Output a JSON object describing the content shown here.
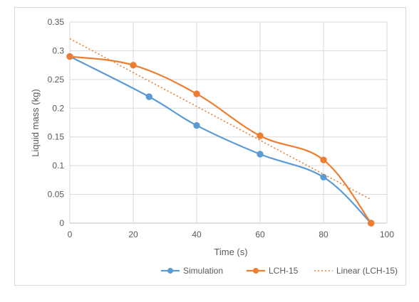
{
  "chart_data": {
    "type": "line",
    "title": "",
    "xlabel": "Time (s)",
    "ylabel": "Liquid mass (kg)",
    "xlim": [
      0,
      100
    ],
    "ylim": [
      0,
      0.35
    ],
    "x_ticks": [
      "0",
      "20",
      "40",
      "60",
      "80",
      "100"
    ],
    "y_ticks": [
      "0",
      "0.05",
      "0.1",
      "0.15",
      "0.2",
      "0.25",
      "0.3",
      "0.35"
    ],
    "grid": true,
    "legend_position": "bottom-right",
    "series": [
      {
        "name": "Simulation",
        "color": "#5b9bd5",
        "style": "smooth-line-markers",
        "points": [
          [
            0,
            0.29
          ],
          [
            25,
            0.22
          ],
          [
            40,
            0.17
          ],
          [
            60,
            0.12
          ],
          [
            80,
            0.08
          ],
          [
            95,
            0.0
          ]
        ]
      },
      {
        "name": "LCH-15",
        "color": "#ed7d31",
        "style": "smooth-line-markers",
        "points": [
          [
            0,
            0.29
          ],
          [
            20,
            0.275
          ],
          [
            40,
            0.225
          ],
          [
            60,
            0.152
          ],
          [
            80,
            0.11
          ],
          [
            95,
            0.0
          ]
        ]
      },
      {
        "name": "Linear (LCH-15)",
        "color": "#ed7d31",
        "style": "dotted-trendline",
        "points": [
          [
            0,
            0.321
          ],
          [
            95,
            0.041
          ]
        ]
      }
    ]
  }
}
